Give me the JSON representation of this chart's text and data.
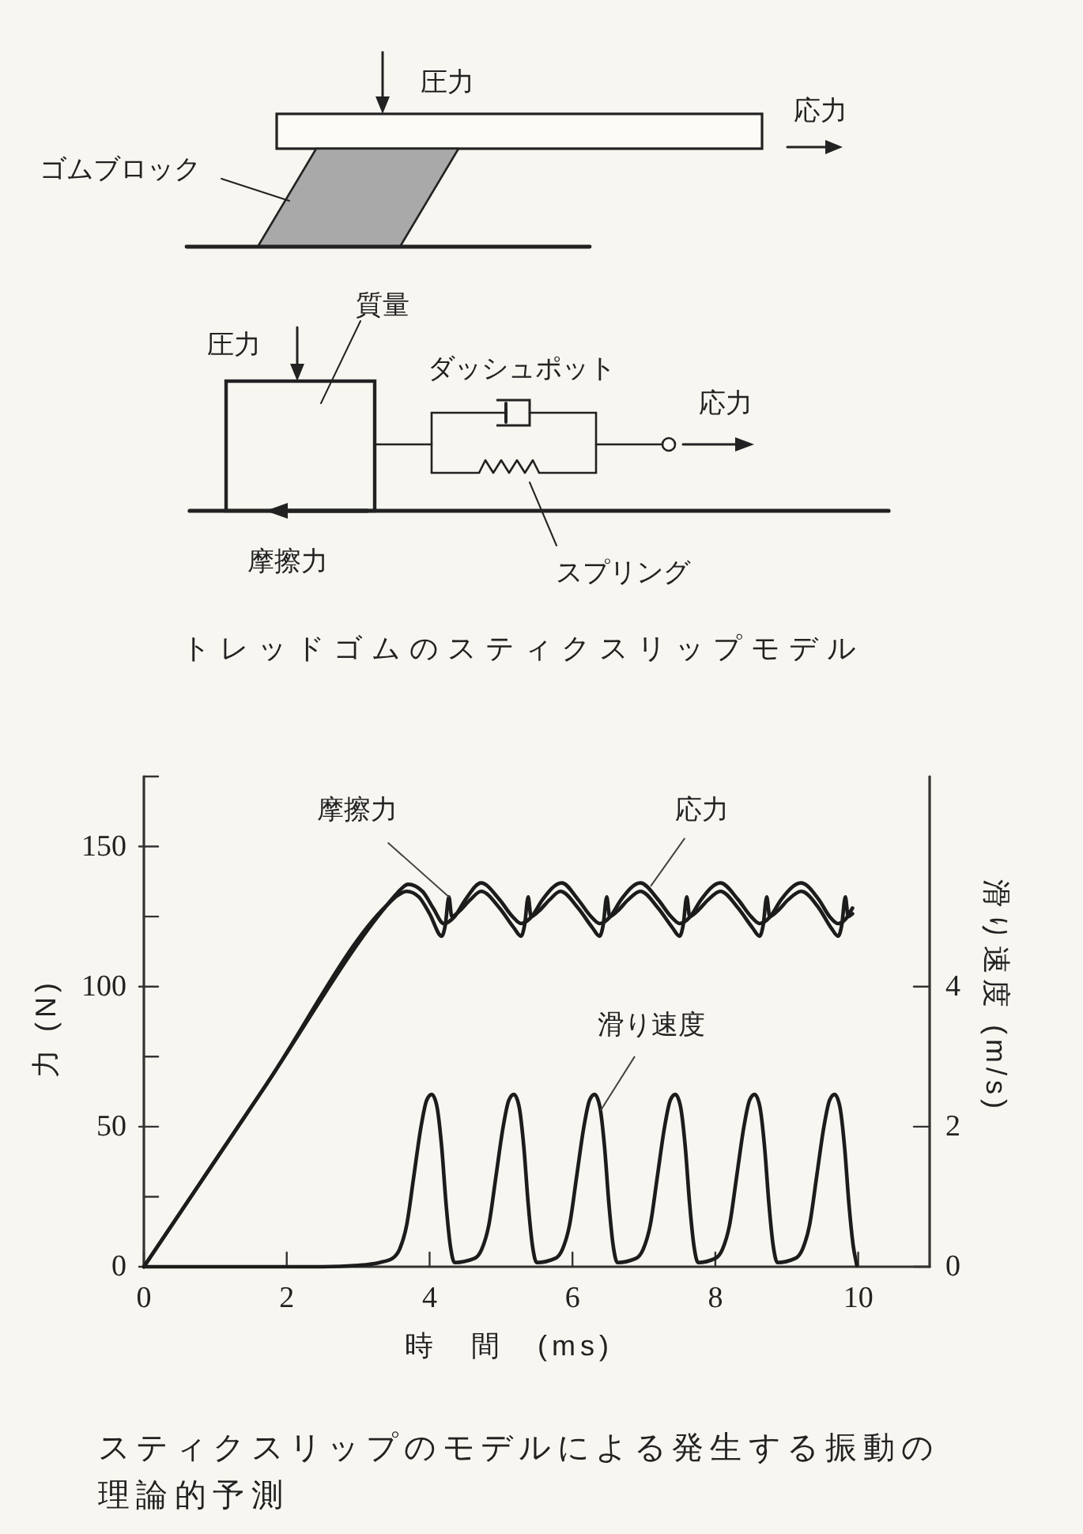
{
  "chart_data": [
    {
      "type": "other",
      "annotations": [
        "圧力",
        "応力",
        "ゴムブロック",
        "質量",
        "圧力",
        "ダッシュポット",
        "応力",
        "摩擦力",
        "スプリング",
        "トレッドゴムのスティクスリップモデル"
      ]
    },
    {
      "type": "line",
      "xlabel": "時　間　(ms)",
      "ylabel": "力 (N)",
      "y2label": "滑り速度 (m/s)",
      "xlim": [
        0,
        11
      ],
      "xticks": [
        0,
        2,
        4,
        6,
        8,
        10
      ],
      "ylim": [
        0,
        175
      ],
      "yticks": [
        0,
        {
          "value": 25,
          "label": null
        },
        50,
        {
          "value": 75,
          "label": null
        },
        100,
        {
          "value": 125,
          "label": null
        },
        150,
        {
          "value": 175,
          "label": null
        }
      ],
      "y2lim": [
        0,
        7
      ],
      "y2ticks": [
        0,
        2,
        4
      ],
      "line_style": "solid",
      "series": [
        {
          "color": "#1c1c1c",
          "x": [
            0,
            1.7,
            3.4,
            3.55,
            3.68,
            3.85,
            4.0,
            4.17,
            4.22,
            4.27,
            4.31,
            4.42,
            4.57,
            4.72,
            4.98,
            5.18,
            5.28,
            5.33,
            5.38,
            5.42,
            5.53,
            5.68,
            5.83,
            6.08,
            6.28,
            6.38,
            6.43,
            6.48,
            6.52,
            6.63,
            6.78,
            6.95,
            7.2,
            7.4,
            7.5,
            7.55,
            7.6,
            7.64,
            7.75,
            7.9,
            8.07,
            8.32,
            8.52,
            8.62,
            8.67,
            8.72,
            8.76,
            8.87,
            9.02,
            9.2,
            9.45,
            9.62,
            9.72,
            9.77,
            9.82,
            9.86,
            9.92
          ],
          "values": [
            0,
            64.5,
            129,
            132.5,
            134,
            132,
            126,
            118,
            122,
            132,
            125,
            127,
            131,
            134,
            128,
            121,
            118,
            122,
            132,
            125,
            127,
            131,
            134,
            128,
            121,
            118,
            122,
            132,
            125,
            127,
            131,
            134,
            128,
            121,
            118,
            122,
            132,
            125,
            127,
            131,
            134,
            128,
            121,
            118,
            122,
            132,
            125,
            127,
            131,
            134,
            128,
            121,
            118,
            122,
            132,
            125,
            126
          ]
        },
        {
          "color": "#1c1c1c",
          "x": [
            0,
            1.7,
            3.4,
            3.55,
            3.7,
            3.9,
            4.05,
            4.2,
            4.35,
            4.5,
            4.72,
            4.98,
            5.16,
            5.28,
            5.43,
            5.58,
            5.85,
            6.08,
            6.26,
            6.38,
            6.53,
            6.68,
            6.95,
            7.2,
            7.38,
            7.5,
            7.65,
            7.8,
            8.07,
            8.32,
            8.5,
            8.62,
            8.77,
            8.92,
            9.2,
            9.45,
            9.6,
            9.72,
            9.82,
            9.92
          ],
          "values": [
            0,
            64.5,
            129,
            133.5,
            136.5,
            134,
            128,
            122.5,
            125,
            131,
            137,
            131,
            125,
            122.5,
            125,
            131,
            137,
            131,
            125,
            122.5,
            125,
            131,
            137,
            131,
            125,
            122.5,
            125,
            131,
            137,
            131,
            125,
            122.5,
            125,
            131,
            137,
            131,
            125,
            122.5,
            124,
            128
          ]
        },
        {
          "color": "#1c1c1c",
          "axis": "y2",
          "x": [
            0,
            2.5,
            3.0,
            3.3,
            3.48,
            3.58,
            3.68,
            3.78,
            3.88,
            3.96,
            4.03,
            4.1,
            4.17,
            4.23,
            4.29,
            4.35,
            4.63,
            4.73,
            4.83,
            4.93,
            5.03,
            5.11,
            5.18,
            5.25,
            5.32,
            5.38,
            5.44,
            5.5,
            5.76,
            5.86,
            5.96,
            6.06,
            6.16,
            6.24,
            6.31,
            6.38,
            6.45,
            6.51,
            6.57,
            6.63,
            6.89,
            6.99,
            7.09,
            7.19,
            7.29,
            7.37,
            7.44,
            7.51,
            7.58,
            7.64,
            7.7,
            7.76,
            8.0,
            8.1,
            8.2,
            8.3,
            8.4,
            8.48,
            8.55,
            8.62,
            8.69,
            8.75,
            8.81,
            8.87,
            9.12,
            9.22,
            9.32,
            9.42,
            9.52,
            9.6,
            9.67,
            9.74,
            9.81,
            9.87,
            9.93,
            9.98
          ],
          "values": [
            0,
            0,
            0.02,
            0.06,
            0.12,
            0.25,
            0.6,
            1.3,
            2.0,
            2.38,
            2.46,
            2.3,
            1.7,
            0.9,
            0.3,
            0.06,
            0.12,
            0.25,
            0.6,
            1.3,
            2.0,
            2.38,
            2.46,
            2.3,
            1.7,
            0.9,
            0.3,
            0.06,
            0.12,
            0.25,
            0.6,
            1.3,
            2.0,
            2.38,
            2.46,
            2.3,
            1.7,
            0.9,
            0.3,
            0.06,
            0.12,
            0.25,
            0.6,
            1.3,
            2.0,
            2.38,
            2.46,
            2.3,
            1.7,
            0.9,
            0.3,
            0.06,
            0.12,
            0.25,
            0.6,
            1.3,
            2.0,
            2.38,
            2.46,
            2.3,
            1.7,
            0.9,
            0.3,
            0.06,
            0.12,
            0.25,
            0.6,
            1.3,
            2.0,
            2.38,
            2.46,
            2.3,
            1.7,
            0.9,
            0.3,
            0.02
          ]
        }
      ],
      "annotations": [
        {
          "text": "摩擦力",
          "x": 4.27,
          "y": 132
        },
        {
          "text": "応力",
          "x": 7.1,
          "y": 136
        },
        {
          "text": "滑り速度",
          "x": 6.4,
          "y": 56
        },
        "スティクスリップのモデルによる発生する振動の理論的予測"
      ]
    }
  ]
}
